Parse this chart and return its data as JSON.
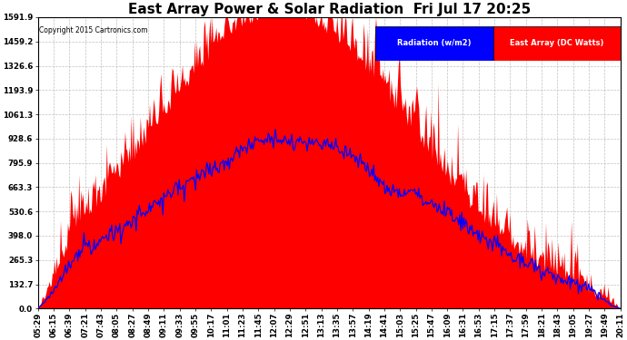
{
  "title": "East Array Power & Solar Radiation  Fri Jul 17 20:25",
  "copyright": "Copyright 2015 Cartronics.com",
  "legend_labels": [
    "Radiation (w/m2)",
    "East Array (DC Watts)"
  ],
  "ymax": 1591.9,
  "yticks": [
    0.0,
    132.7,
    265.3,
    398.0,
    530.6,
    663.3,
    795.9,
    928.6,
    1061.3,
    1193.9,
    1326.6,
    1459.2,
    1591.9
  ],
  "background_color": "#ffffff",
  "grid_color": "#b0b0b0",
  "radiation_color": "#0000ff",
  "power_color": "#ff0000",
  "title_fontsize": 11,
  "tick_fontsize": 6.2,
  "legend_bg_radiation": "#0000cc",
  "legend_bg_power": "#cc0000",
  "xtick_labels": [
    "05:29",
    "06:15",
    "06:39",
    "07:21",
    "07:43",
    "08:05",
    "08:27",
    "08:49",
    "09:11",
    "09:33",
    "09:55",
    "10:17",
    "11:01",
    "11:23",
    "11:45",
    "12:07",
    "12:29",
    "12:51",
    "13:13",
    "13:35",
    "13:57",
    "14:19",
    "14:41",
    "15:03",
    "15:25",
    "15:47",
    "16:09",
    "16:31",
    "16:53",
    "17:15",
    "17:37",
    "17:59",
    "18:21",
    "18:43",
    "19:05",
    "19:27",
    "19:49",
    "20:11"
  ]
}
